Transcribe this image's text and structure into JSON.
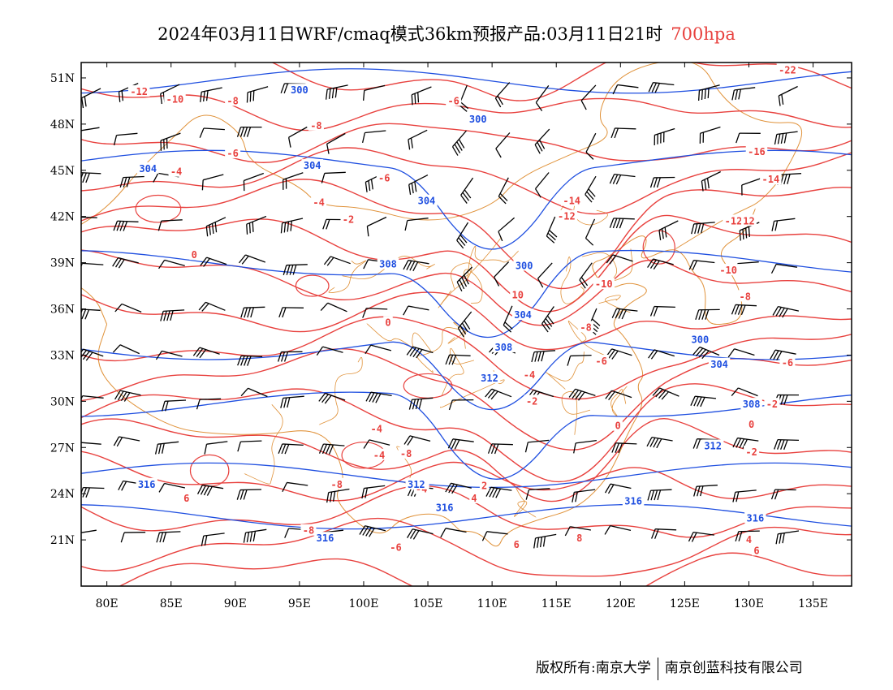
{
  "title": {
    "text": "2024年03月11日WRF/cmaq模式36km预报产品:03月11日21时",
    "level": "700hpa",
    "level_color": "#e8413e"
  },
  "map": {
    "lon_range": [
      78,
      138
    ],
    "lat_range": [
      18,
      52
    ],
    "lon_ticks": [
      80,
      85,
      90,
      95,
      100,
      105,
      110,
      115,
      120,
      125,
      130,
      135
    ],
    "lon_tick_labels": [
      "80E",
      "85E",
      "90E",
      "95E",
      "100E",
      "105E",
      "110E",
      "115E",
      "120E",
      "125E",
      "130E",
      "135E"
    ],
    "lat_ticks": [
      21,
      24,
      27,
      30,
      33,
      36,
      39,
      42,
      45,
      48,
      51
    ],
    "lat_tick_labels": [
      "21N",
      "24N",
      "27N",
      "30N",
      "33N",
      "36N",
      "39N",
      "42N",
      "45N",
      "48N",
      "51N"
    ],
    "colors": {
      "temperature": "#e8413e",
      "geopotential": "#1f4fe0",
      "boundaries": "#e0923a",
      "wind_barbs": "#000000"
    },
    "temperature_labels": [
      {
        "text": "-12",
        "lon": 82.5,
        "lat": 50.1
      },
      {
        "text": "-10",
        "lon": 85.3,
        "lat": 49.6
      },
      {
        "text": "-8",
        "lon": 89.8,
        "lat": 49.5
      },
      {
        "text": "-8",
        "lon": 96.3,
        "lat": 47.9
      },
      {
        "text": "-6",
        "lon": 89.8,
        "lat": 46.1
      },
      {
        "text": "-4",
        "lon": 85.4,
        "lat": 44.9
      },
      {
        "text": "-4",
        "lon": 96.5,
        "lat": 42.9
      },
      {
        "text": "-2",
        "lon": 98.8,
        "lat": 41.8
      },
      {
        "text": "0",
        "lon": 86.8,
        "lat": 39.5
      },
      {
        "text": "-6",
        "lon": 107.0,
        "lat": 49.5
      },
      {
        "text": "-6",
        "lon": 101.6,
        "lat": 44.5
      },
      {
        "text": "-14",
        "lon": 116.2,
        "lat": 43.0
      },
      {
        "text": "-12",
        "lon": 115.8,
        "lat": 42.0
      },
      {
        "text": "-10",
        "lon": 118.7,
        "lat": 37.6
      },
      {
        "text": "-8",
        "lon": 117.3,
        "lat": 34.8
      },
      {
        "text": "-6",
        "lon": 118.5,
        "lat": 32.6
      },
      {
        "text": "-4",
        "lon": 112.9,
        "lat": 31.7
      },
      {
        "text": "-2",
        "lon": 113.1,
        "lat": 30.0
      },
      {
        "text": "0",
        "lon": 119.8,
        "lat": 28.4
      },
      {
        "text": "0",
        "lon": 101.9,
        "lat": 35.1
      },
      {
        "text": "2",
        "lon": 109.4,
        "lat": 24.5
      },
      {
        "text": "4",
        "lon": 108.6,
        "lat": 23.7
      },
      {
        "text": "6",
        "lon": 111.9,
        "lat": 20.7
      },
      {
        "text": "8",
        "lon": 116.8,
        "lat": 21.1
      },
      {
        "text": "10",
        "lon": 112.0,
        "lat": 36.9
      },
      {
        "text": "-16",
        "lon": 130.6,
        "lat": 46.2
      },
      {
        "text": "-14",
        "lon": 131.7,
        "lat": 44.4
      },
      {
        "text": "-12",
        "lon": 128.8,
        "lat": 41.7
      },
      {
        "text": "12",
        "lon": 130.0,
        "lat": 41.7
      },
      {
        "text": "-10",
        "lon": 128.4,
        "lat": 38.5
      },
      {
        "text": "-8",
        "lon": 129.7,
        "lat": 36.8
      },
      {
        "text": "-6",
        "lon": 133.0,
        "lat": 32.5
      },
      {
        "text": "-2",
        "lon": 131.8,
        "lat": 29.8
      },
      {
        "text": "0",
        "lon": 130.2,
        "lat": 28.5
      },
      {
        "text": "-2",
        "lon": 130.2,
        "lat": 26.7
      },
      {
        "text": "-22",
        "lon": 133.0,
        "lat": 51.5
      },
      {
        "text": "-4",
        "lon": 101.2,
        "lat": 26.5
      },
      {
        "text": "-4",
        "lon": 101.0,
        "lat": 28.2
      },
      {
        "text": "-8",
        "lon": 103.3,
        "lat": 26.6
      },
      {
        "text": "-4",
        "lon": 104.5,
        "lat": 24.3
      },
      {
        "text": "-6",
        "lon": 102.5,
        "lat": 20.5
      },
      {
        "text": "-8",
        "lon": 97.9,
        "lat": 24.6
      },
      {
        "text": "-8",
        "lon": 95.7,
        "lat": 21.6
      },
      {
        "text": "6",
        "lon": 86.2,
        "lat": 23.7
      },
      {
        "text": "4",
        "lon": 130.0,
        "lat": 21.0
      },
      {
        "text": "6",
        "lon": 130.6,
        "lat": 20.3
      }
    ],
    "geopotential_labels": [
      {
        "text": "300",
        "lon": 95.0,
        "lat": 50.2
      },
      {
        "text": "300",
        "lon": 108.9,
        "lat": 48.3
      },
      {
        "text": "304",
        "lon": 83.2,
        "lat": 45.1
      },
      {
        "text": "304",
        "lon": 96.0,
        "lat": 45.3
      },
      {
        "text": "304",
        "lon": 104.9,
        "lat": 43.0
      },
      {
        "text": "308",
        "lon": 101.9,
        "lat": 38.9
      },
      {
        "text": "300",
        "lon": 112.5,
        "lat": 38.8
      },
      {
        "text": "304",
        "lon": 112.4,
        "lat": 35.6
      },
      {
        "text": "308",
        "lon": 110.9,
        "lat": 33.5
      },
      {
        "text": "312",
        "lon": 109.8,
        "lat": 31.5
      },
      {
        "text": "300",
        "lon": 126.2,
        "lat": 34.0
      },
      {
        "text": "304",
        "lon": 127.7,
        "lat": 32.4
      },
      {
        "text": "308",
        "lon": 130.2,
        "lat": 29.8
      },
      {
        "text": "312",
        "lon": 104.1,
        "lat": 24.6
      },
      {
        "text": "316",
        "lon": 83.1,
        "lat": 24.6
      },
      {
        "text": "316",
        "lon": 106.3,
        "lat": 23.1
      },
      {
        "text": "316",
        "lon": 97.0,
        "lat": 21.1
      },
      {
        "text": "316",
        "lon": 121.0,
        "lat": 23.5
      },
      {
        "text": "316",
        "lon": 130.5,
        "lat": 22.4
      },
      {
        "text": "312",
        "lon": 127.2,
        "lat": 27.1
      }
    ],
    "wind_barbs_note": "barbs drawn across grid"
  },
  "footer": {
    "left": "版权所有:南京大学",
    "right": "南京创蓝科技有限公司"
  }
}
